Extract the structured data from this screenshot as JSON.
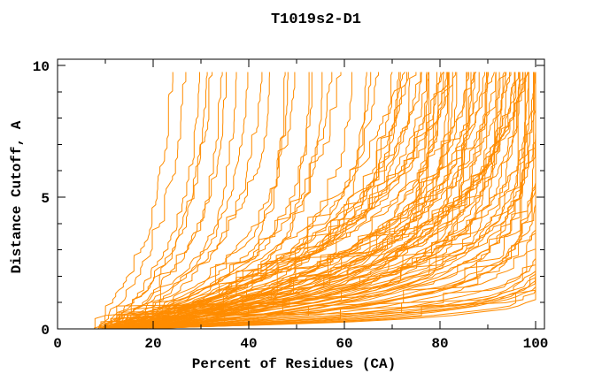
{
  "chart_data": {
    "type": "line",
    "title": "T1019s2-D1",
    "xlabel": "Percent of Residues (CA)",
    "ylabel": "Distance Cutoff, A",
    "xlim": [
      0,
      102
    ],
    "ylim": [
      0,
      10.25
    ],
    "x_major_ticks": [
      0,
      20,
      40,
      60,
      80,
      100
    ],
    "x_minor_ticks": [
      10,
      30,
      50,
      70,
      90
    ],
    "y_major_ticks": [
      0,
      5,
      10
    ],
    "y_minor_ticks": [
      1,
      2,
      3,
      4,
      6,
      7,
      8,
      9
    ],
    "grid": false,
    "legend": "none",
    "line_color": "#ff8c00",
    "axis_color": "#000000",
    "curve_count": 108,
    "curve_model": "GDT-style cumulative curves, one per predicted model: x(y) = pmax - (pmax - p0) * exp(-y / tau), for distance cutoff y from 0 to 9.8 A, x clipped to 100 percent (values estimated from plot pixels)",
    "curve_params_format": [
      "p0_percent_at_cutoff_0",
      "pmax_percent_asymptote",
      "tau_shape_A",
      "seed"
    ],
    "curves": [
      [
        7,
        25,
        3.6,
        11
      ],
      [
        8,
        27,
        3.2,
        12
      ],
      [
        9,
        30,
        2.9,
        13
      ],
      [
        10,
        33,
        3.4,
        14
      ],
      [
        8,
        31,
        2.5,
        15
      ],
      [
        11,
        36,
        3.0,
        16
      ],
      [
        12,
        40,
        2.7,
        17
      ],
      [
        9,
        34,
        2.3,
        18
      ],
      [
        13,
        43,
        2.8,
        19
      ],
      [
        10,
        37,
        2.2,
        20
      ],
      [
        8,
        46,
        2.9,
        21
      ],
      [
        10,
        50,
        2.6,
        22
      ],
      [
        12,
        54,
        2.4,
        23
      ],
      [
        9,
        48,
        2.1,
        24
      ],
      [
        11,
        58,
        2.7,
        25
      ],
      [
        13,
        62,
        2.3,
        26
      ],
      [
        10,
        55,
        1.9,
        27
      ],
      [
        14,
        66,
        2.5,
        28
      ],
      [
        9,
        60,
        2.8,
        29
      ],
      [
        12,
        70,
        2.2,
        30
      ],
      [
        15,
        64,
        1.8,
        31
      ],
      [
        11,
        52,
        1.6,
        32
      ],
      [
        13,
        72,
        2.4,
        33
      ],
      [
        10,
        68,
        2.7,
        34
      ],
      [
        16,
        71,
        2.0,
        35
      ],
      [
        8,
        47,
        1.7,
        36
      ],
      [
        9,
        76,
        2.6,
        37
      ],
      [
        11,
        78,
        2.2,
        38
      ],
      [
        13,
        80,
        1.9,
        39
      ],
      [
        10,
        82,
        2.4,
        40
      ],
      [
        12,
        84,
        2.1,
        41
      ],
      [
        14,
        86,
        1.7,
        42
      ],
      [
        9,
        88,
        2.3,
        43
      ],
      [
        11,
        90,
        2.0,
        44
      ],
      [
        13,
        92,
        1.6,
        45
      ],
      [
        15,
        94,
        2.2,
        46
      ],
      [
        10,
        77,
        1.4,
        47
      ],
      [
        12,
        79,
        1.8,
        48
      ],
      [
        14,
        81,
        1.5,
        49
      ],
      [
        16,
        83,
        2.0,
        50
      ],
      [
        9,
        85,
        1.3,
        51
      ],
      [
        11,
        87,
        1.9,
        52
      ],
      [
        13,
        89,
        1.5,
        53
      ],
      [
        15,
        91,
        1.2,
        54
      ],
      [
        10,
        93,
        1.8,
        55
      ],
      [
        12,
        95,
        1.4,
        56
      ],
      [
        8,
        76,
        3.2,
        57
      ],
      [
        10,
        80,
        3.0,
        58
      ],
      [
        12,
        84,
        3.4,
        59
      ],
      [
        14,
        88,
        2.8,
        60
      ],
      [
        9,
        92,
        3.1,
        61
      ],
      [
        11,
        75,
        2.9,
        62
      ],
      [
        13,
        79,
        3.3,
        63
      ],
      [
        15,
        83,
        2.6,
        64
      ],
      [
        10,
        87,
        3.5,
        65
      ],
      [
        12,
        91,
        2.7,
        66
      ],
      [
        14,
        95,
        3.0,
        67
      ],
      [
        9,
        78,
        4.0,
        68
      ],
      [
        11,
        82,
        3.8,
        69
      ],
      [
        13,
        86,
        3.6,
        70
      ],
      [
        15,
        90,
        4.2,
        71
      ],
      [
        10,
        94,
        3.9,
        72
      ],
      [
        12,
        77,
        1.1,
        73
      ],
      [
        14,
        81,
        1.0,
        74
      ],
      [
        16,
        85,
        1.2,
        75
      ],
      [
        18,
        89,
        1.1,
        76
      ],
      [
        10,
        96,
        2.2,
        77
      ],
      [
        12,
        97,
        1.9,
        78
      ],
      [
        14,
        98,
        1.6,
        79
      ],
      [
        9,
        99,
        2.4,
        80
      ],
      [
        11,
        100,
        2.0,
        81
      ],
      [
        13,
        101,
        1.7,
        82
      ],
      [
        15,
        102,
        1.4,
        83
      ],
      [
        10,
        96,
        1.1,
        84
      ],
      [
        12,
        98,
        1.3,
        85
      ],
      [
        14,
        100,
        1.0,
        86
      ],
      [
        16,
        102,
        1.2,
        87
      ],
      [
        9,
        97,
        0.9,
        88
      ],
      [
        11,
        99,
        1.5,
        89
      ],
      [
        13,
        101,
        1.8,
        90
      ],
      [
        15,
        103,
        2.1,
        91
      ],
      [
        10,
        98,
        2.6,
        92
      ],
      [
        12,
        100,
        2.9,
        93
      ],
      [
        14,
        102,
        3.2,
        94
      ],
      [
        16,
        96,
        2.5,
        95
      ],
      [
        18,
        98,
        2.8,
        96
      ],
      [
        9,
        100,
        3.4,
        97
      ],
      [
        11,
        102,
        3.1,
        98
      ],
      [
        13,
        97,
        0.8,
        99
      ],
      [
        15,
        99,
        1.0,
        100
      ],
      [
        17,
        101,
        0.9,
        101
      ],
      [
        12,
        103,
        1.1,
        102
      ],
      [
        14,
        96,
        3.6,
        103
      ],
      [
        16,
        100,
        3.8,
        104
      ],
      [
        10,
        102,
        2.3,
        105
      ],
      [
        18,
        103,
        1.6,
        106
      ],
      [
        10,
        101,
        0.55,
        107
      ],
      [
        12,
        102,
        0.5,
        108
      ],
      [
        14,
        103,
        0.6,
        109
      ],
      [
        16,
        104,
        0.45,
        110
      ],
      [
        11,
        102,
        0.7,
        111
      ],
      [
        13,
        103,
        0.65,
        112
      ],
      [
        15,
        104,
        0.4,
        113
      ],
      [
        17,
        103,
        0.5,
        114
      ],
      [
        12,
        104,
        0.35,
        115
      ],
      [
        14,
        102,
        0.75,
        116
      ],
      [
        16,
        103,
        0.55,
        117
      ],
      [
        18,
        104,
        0.6,
        118
      ]
    ]
  }
}
